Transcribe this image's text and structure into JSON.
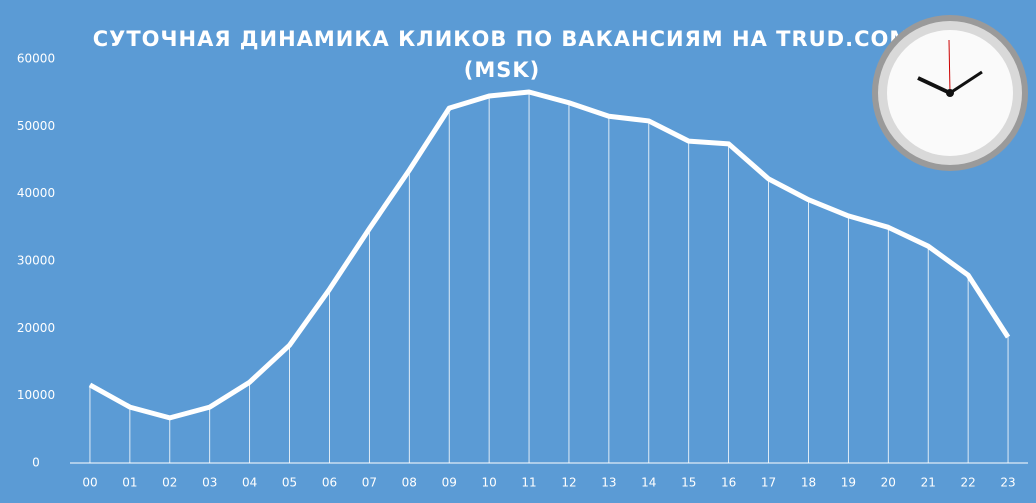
{
  "chart_data": {
    "type": "line",
    "title": [
      "СУТОЧНАЯ ДИНАМИКА КЛИКОВ ПО ВАКАНСИЯМ НА TRUD.COM",
      "(MSK)"
    ],
    "categories": [
      "00",
      "01",
      "02",
      "03",
      "04",
      "05",
      "06",
      "07",
      "08",
      "09",
      "10",
      "11",
      "12",
      "13",
      "14",
      "15",
      "16",
      "17",
      "18",
      "19",
      "20",
      "21",
      "22",
      "23"
    ],
    "values": [
      11600,
      8300,
      6700,
      8300,
      12000,
      17500,
      25800,
      34800,
      43500,
      52700,
      54500,
      55100,
      53500,
      51500,
      50800,
      47800,
      47400,
      42200,
      39100,
      36700,
      35000,
      32200,
      27900,
      18700
    ],
    "color": "#ffffff",
    "ylim": [
      0,
      60000
    ],
    "yticks": [
      0,
      10000,
      20000,
      30000,
      40000,
      50000,
      60000
    ],
    "drop_lines": true
  }
}
